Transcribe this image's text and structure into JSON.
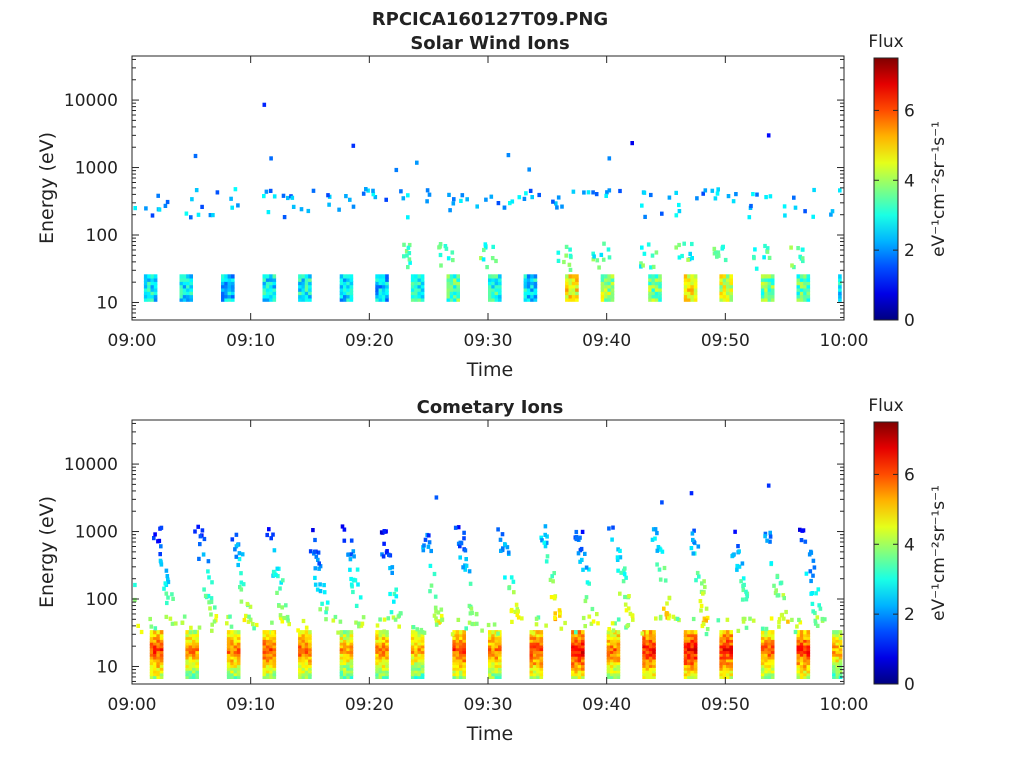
{
  "figure": {
    "title": "RPCICA160127T09.PNG"
  },
  "colorbar": {
    "title": "Flux",
    "label": "eV⁻¹cm⁻²sr⁻¹s⁻¹",
    "range": [
      0,
      7.5
    ],
    "ticks": [
      "0",
      "2",
      "4",
      "6"
    ],
    "colormap": "jet",
    "colors": [
      "#00008f",
      "#0000ff",
      "#00ffff",
      "#ffff00",
      "#ff0000",
      "#800000"
    ]
  },
  "chart_data": [
    {
      "type": "heatmap",
      "title": "Solar Wind Ions",
      "xlabel": "Time",
      "ylabel": "Energy (eV)",
      "x_ticks": [
        "09:00",
        "09:10",
        "09:20",
        "09:30",
        "09:40",
        "09:50",
        "10:00"
      ],
      "xlim": [
        "09:00",
        "10:00"
      ],
      "y_ticks": [
        "10",
        "100",
        "1000",
        "10000"
      ],
      "y_scale": "log",
      "ylim": [
        5.5,
        45000
      ],
      "grid": false,
      "colorbar_range": [
        0,
        7.5
      ],
      "pulses": [
        {
          "t": "09:01",
          "c": 3.5
        },
        {
          "t": "09:04",
          "c": 3.5
        },
        {
          "t": "09:07.5",
          "c": 3.2
        },
        {
          "t": "09:11",
          "c": 3.5
        },
        {
          "t": "09:14",
          "c": 3.6
        },
        {
          "t": "09:17.5",
          "c": 3.3
        },
        {
          "t": "09:20.5",
          "c": 3.2
        },
        {
          "t": "09:23.5",
          "c": 3.8
        },
        {
          "t": "09:26.5",
          "c": 4.2
        },
        {
          "t": "09:30",
          "c": 3.8
        },
        {
          "t": "09:33",
          "c": 3.4
        },
        {
          "t": "09:36.5",
          "c": 5.5
        },
        {
          "t": "09:39.5",
          "c": 4.8
        },
        {
          "t": "09:43.5",
          "c": 4.5
        },
        {
          "t": "09:46.5",
          "c": 5.6
        },
        {
          "t": "09:49.5",
          "c": 5.2
        },
        {
          "t": "09:53",
          "c": 4.4
        },
        {
          "t": "09:56",
          "c": 4.2
        },
        {
          "t": "09:59.5",
          "c": 3.6
        }
      ]
    },
    {
      "type": "heatmap",
      "title": "Cometary Ions",
      "xlabel": "Time",
      "ylabel": "Energy (eV)",
      "x_ticks": [
        "09:00",
        "09:10",
        "09:20",
        "09:30",
        "09:40",
        "09:50",
        "10:00"
      ],
      "xlim": [
        "09:00",
        "10:00"
      ],
      "y_ticks": [
        "10",
        "100",
        "1000",
        "10000"
      ],
      "y_scale": "log",
      "ylim": [
        5.5,
        45000
      ],
      "grid": false,
      "colorbar_range": [
        0,
        7.5
      ],
      "pulses": [
        {
          "t": "09:01.5",
          "c": 6.8
        },
        {
          "t": "09:04.5",
          "c": 6.2
        },
        {
          "t": "09:08",
          "c": 6.4
        },
        {
          "t": "09:11",
          "c": 6.6
        },
        {
          "t": "09:14",
          "c": 6.5
        },
        {
          "t": "09:17.5",
          "c": 6.0
        },
        {
          "t": "09:20.5",
          "c": 6.3
        },
        {
          "t": "09:23.5",
          "c": 6.0
        },
        {
          "t": "09:27",
          "c": 6.7
        },
        {
          "t": "09:30",
          "c": 6.4
        },
        {
          "t": "09:33.5",
          "c": 6.8
        },
        {
          "t": "09:37",
          "c": 7.2
        },
        {
          "t": "09:40",
          "c": 6.4
        },
        {
          "t": "09:43",
          "c": 7.0
        },
        {
          "t": "09:46.5",
          "c": 7.2
        },
        {
          "t": "09:49.5",
          "c": 7.0
        },
        {
          "t": "09:53",
          "c": 6.5
        },
        {
          "t": "09:56",
          "c": 6.9
        },
        {
          "t": "09:59",
          "c": 6.0
        }
      ]
    }
  ]
}
